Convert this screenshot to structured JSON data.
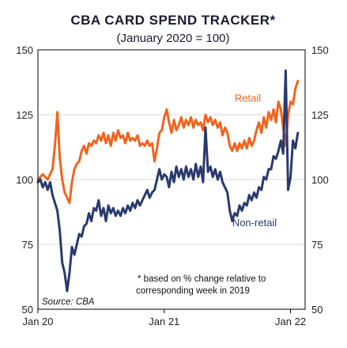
{
  "chart_data": {
    "type": "line",
    "title": "CBA CARD SPEND TRACKER*",
    "subtitle": "(January 2020 = 100)",
    "ylim": [
      50,
      150
    ],
    "y_ticks": [
      "50",
      "75",
      "100",
      "125",
      "150"
    ],
    "x_ticks": [
      {
        "label": "Jan 20",
        "x": 0
      },
      {
        "label": "Jan 21",
        "x": 52
      },
      {
        "label": "Jan 22",
        "x": 104
      }
    ],
    "x_unit": "weeks since Jan 2020",
    "grid": true,
    "footnote_line1": "*  based on % change  relative to",
    "footnote_line2": "corresponding  week in 2019",
    "source": "Source:  CBA",
    "series": [
      {
        "name": "Retail",
        "color": "#f0641e",
        "label_x": 81,
        "label_y": 130,
        "values": [
          [
            0,
            100
          ],
          [
            1,
            101
          ],
          [
            2,
            102
          ],
          [
            3,
            101
          ],
          [
            4,
            100
          ],
          [
            5,
            102
          ],
          [
            6,
            104
          ],
          [
            7,
            113
          ],
          [
            8,
            126
          ],
          [
            9,
            108
          ],
          [
            10,
            100
          ],
          [
            11,
            95
          ],
          [
            12,
            93
          ],
          [
            13,
            91
          ],
          [
            14,
            99
          ],
          [
            15,
            104
          ],
          [
            16,
            106
          ],
          [
            17,
            107
          ],
          [
            18,
            111
          ],
          [
            19,
            113
          ],
          [
            20,
            110
          ],
          [
            21,
            114
          ],
          [
            22,
            113
          ],
          [
            23,
            115
          ],
          [
            24,
            114
          ],
          [
            25,
            117
          ],
          [
            26,
            115
          ],
          [
            27,
            118
          ],
          [
            28,
            114
          ],
          [
            29,
            117
          ],
          [
            30,
            113
          ],
          [
            31,
            118
          ],
          [
            32,
            115
          ],
          [
            33,
            119
          ],
          [
            34,
            116
          ],
          [
            35,
            117
          ],
          [
            36,
            114
          ],
          [
            37,
            118
          ],
          [
            38,
            115
          ],
          [
            39,
            116
          ],
          [
            40,
            115
          ],
          [
            41,
            117
          ],
          [
            42,
            113
          ],
          [
            43,
            114
          ],
          [
            44,
            113
          ],
          [
            45,
            115
          ],
          [
            46,
            113
          ],
          [
            47,
            114
          ],
          [
            48,
            107
          ],
          [
            49,
            112
          ],
          [
            50,
            118
          ],
          [
            51,
            119
          ],
          [
            52,
            124
          ],
          [
            53,
            127
          ],
          [
            54,
            122
          ],
          [
            55,
            118
          ],
          [
            56,
            123
          ],
          [
            57,
            119
          ],
          [
            58,
            121
          ],
          [
            59,
            124
          ],
          [
            60,
            120
          ],
          [
            61,
            123
          ],
          [
            62,
            121
          ],
          [
            63,
            124
          ],
          [
            64,
            120
          ],
          [
            65,
            123
          ],
          [
            66,
            121
          ],
          [
            67,
            122
          ],
          [
            68,
            119
          ],
          [
            69,
            125
          ],
          [
            70,
            122
          ],
          [
            71,
            124
          ],
          [
            72,
            121
          ],
          [
            73,
            123
          ],
          [
            74,
            120
          ],
          [
            75,
            122
          ],
          [
            76,
            117
          ],
          [
            77,
            120
          ],
          [
            78,
            118
          ],
          [
            79,
            113
          ],
          [
            80,
            111
          ],
          [
            81,
            114
          ],
          [
            82,
            111
          ],
          [
            83,
            114
          ],
          [
            84,
            112
          ],
          [
            85,
            115
          ],
          [
            86,
            112
          ],
          [
            87,
            116
          ],
          [
            88,
            113
          ],
          [
            89,
            115
          ],
          [
            90,
            119
          ],
          [
            91,
            122
          ],
          [
            92,
            118
          ],
          [
            93,
            124
          ],
          [
            94,
            120
          ],
          [
            95,
            126
          ],
          [
            96,
            123
          ],
          [
            97,
            127
          ],
          [
            98,
            122
          ],
          [
            99,
            130
          ],
          [
            100,
            127
          ],
          [
            101,
            120
          ],
          [
            102,
            113
          ],
          [
            103,
            125
          ],
          [
            104,
            130
          ],
          [
            105,
            129
          ],
          [
            106,
            135
          ],
          [
            107,
            138
          ]
        ]
      },
      {
        "name": "Non-retail",
        "color": "#2a3a6e",
        "label_x": 80,
        "label_y": 82,
        "values": [
          [
            0,
            99
          ],
          [
            1,
            100
          ],
          [
            2,
            97
          ],
          [
            3,
            99
          ],
          [
            4,
            96
          ],
          [
            5,
            99
          ],
          [
            6,
            94
          ],
          [
            7,
            91
          ],
          [
            8,
            88
          ],
          [
            9,
            80
          ],
          [
            10,
            68
          ],
          [
            11,
            64
          ],
          [
            12,
            57
          ],
          [
            13,
            64
          ],
          [
            14,
            74
          ],
          [
            15,
            71
          ],
          [
            16,
            75
          ],
          [
            17,
            79
          ],
          [
            18,
            78
          ],
          [
            19,
            82
          ],
          [
            20,
            83
          ],
          [
            21,
            87
          ],
          [
            22,
            84
          ],
          [
            23,
            89
          ],
          [
            24,
            88
          ],
          [
            25,
            92
          ],
          [
            26,
            86
          ],
          [
            27,
            89
          ],
          [
            28,
            84
          ],
          [
            29,
            90
          ],
          [
            30,
            87
          ],
          [
            31,
            89
          ],
          [
            32,
            86
          ],
          [
            33,
            88
          ],
          [
            34,
            86
          ],
          [
            35,
            89
          ],
          [
            36,
            87
          ],
          [
            37,
            90
          ],
          [
            38,
            88
          ],
          [
            39,
            91
          ],
          [
            40,
            89
          ],
          [
            41,
            92
          ],
          [
            42,
            90
          ],
          [
            43,
            92
          ],
          [
            44,
            94
          ],
          [
            45,
            96
          ],
          [
            46,
            93
          ],
          [
            47,
            95
          ],
          [
            48,
            96
          ],
          [
            49,
            100
          ],
          [
            50,
            104
          ],
          [
            51,
            100
          ],
          [
            52,
            102
          ],
          [
            53,
            101
          ],
          [
            54,
            97
          ],
          [
            55,
            103
          ],
          [
            56,
            99
          ],
          [
            57,
            105
          ],
          [
            58,
            101
          ],
          [
            59,
            104
          ],
          [
            60,
            100
          ],
          [
            61,
            105
          ],
          [
            62,
            101
          ],
          [
            63,
            104
          ],
          [
            64,
            100
          ],
          [
            65,
            106
          ],
          [
            66,
            101
          ],
          [
            67,
            105
          ],
          [
            68,
            99
          ],
          [
            69,
            120
          ],
          [
            70,
            103
          ],
          [
            71,
            105
          ],
          [
            72,
            101
          ],
          [
            73,
            104
          ],
          [
            74,
            100
          ],
          [
            75,
            103
          ],
          [
            76,
            99
          ],
          [
            77,
            97
          ],
          [
            78,
            95
          ],
          [
            79,
            88
          ],
          [
            80,
            84
          ],
          [
            81,
            87
          ],
          [
            82,
            86
          ],
          [
            83,
            90
          ],
          [
            84,
            88
          ],
          [
            85,
            91
          ],
          [
            86,
            90
          ],
          [
            87,
            94
          ],
          [
            88,
            92
          ],
          [
            89,
            95
          ],
          [
            90,
            93
          ],
          [
            91,
            97
          ],
          [
            92,
            96
          ],
          [
            93,
            101
          ],
          [
            94,
            100
          ],
          [
            95,
            104
          ],
          [
            96,
            104
          ],
          [
            97,
            109
          ],
          [
            98,
            108
          ],
          [
            99,
            111
          ],
          [
            100,
            115
          ],
          [
            101,
            110
          ],
          [
            102,
            142
          ],
          [
            103,
            96
          ],
          [
            104,
            101
          ],
          [
            105,
            115
          ],
          [
            106,
            112
          ],
          [
            107,
            118
          ]
        ]
      }
    ]
  }
}
